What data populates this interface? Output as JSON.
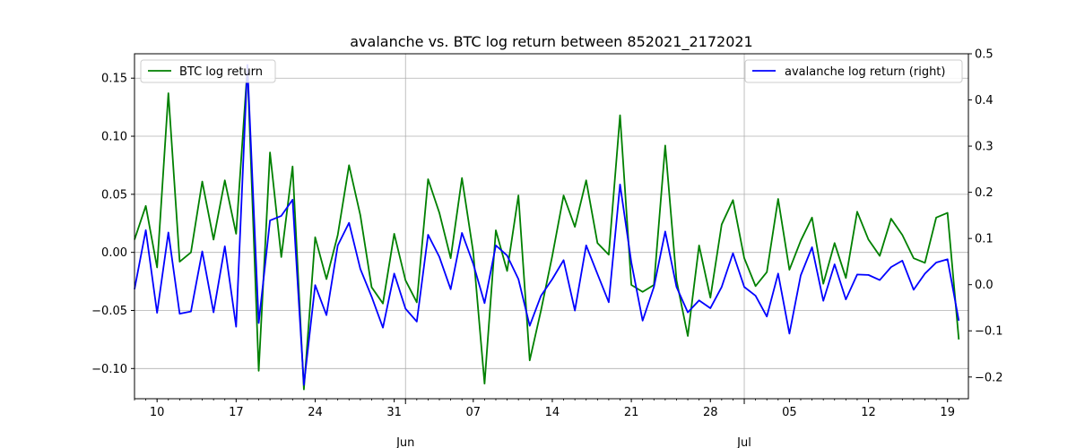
{
  "chart_data": {
    "type": "line",
    "title": "avalanche vs. BTC log return between 852021_2172021",
    "x": [
      "05-08",
      "05-09",
      "05-10",
      "05-11",
      "05-12",
      "05-13",
      "05-14",
      "05-15",
      "05-16",
      "05-17",
      "05-18",
      "05-19",
      "05-20",
      "05-21",
      "05-22",
      "05-23",
      "05-24",
      "05-25",
      "05-26",
      "05-27",
      "05-28",
      "05-29",
      "05-30",
      "05-31",
      "06-01",
      "06-02",
      "06-03",
      "06-04",
      "06-05",
      "06-06",
      "06-07",
      "06-08",
      "06-09",
      "06-10",
      "06-11",
      "06-12",
      "06-13",
      "06-14",
      "06-15",
      "06-16",
      "06-17",
      "06-18",
      "06-19",
      "06-20",
      "06-21",
      "06-22",
      "06-23",
      "06-24",
      "06-25",
      "06-26",
      "06-27",
      "06-28",
      "06-29",
      "06-30",
      "07-01",
      "07-02",
      "07-03",
      "07-04",
      "07-05",
      "07-06",
      "07-07",
      "07-08",
      "07-09",
      "07-10",
      "07-11",
      "07-12",
      "07-13",
      "07-14",
      "07-15",
      "07-16",
      "07-17",
      "07-18",
      "07-19",
      "07-20"
    ],
    "xlim": [
      "05-08",
      "05-21"
    ],
    "x_tick_labels": [
      {
        "date": "05-10",
        "label": "10"
      },
      {
        "date": "05-17",
        "label": "17"
      },
      {
        "date": "05-24",
        "label": "24"
      },
      {
        "date": "05-31",
        "label": "31"
      },
      {
        "date": "06-07",
        "label": "07"
      },
      {
        "date": "06-14",
        "label": "14"
      },
      {
        "date": "06-21",
        "label": "21"
      },
      {
        "date": "06-28",
        "label": "28"
      },
      {
        "date": "07-05",
        "label": "05"
      },
      {
        "date": "07-12",
        "label": "12"
      },
      {
        "date": "07-19",
        "label": "19"
      }
    ],
    "x_major_labels": [
      {
        "date": "06-01",
        "label": "Jun"
      },
      {
        "date": "07-01",
        "label": "Jul"
      }
    ],
    "left_axis": {
      "ylim": [
        -0.126,
        0.171
      ],
      "ticks": [
        "0.15",
        "0.10",
        "0.05",
        "0.00",
        "−0.05",
        "−0.10"
      ],
      "tick_values": [
        0.15,
        0.1,
        0.05,
        0.0,
        -0.05,
        -0.1
      ]
    },
    "right_axis": {
      "ylim": [
        -0.247,
        0.5
      ],
      "ticks": [
        "0.5",
        "0.4",
        "0.3",
        "0.2",
        "0.1",
        "0.0",
        "−0.1",
        "−0.2"
      ],
      "tick_values": [
        0.5,
        0.4,
        0.3,
        0.2,
        0.1,
        0.0,
        -0.1,
        -0.2
      ]
    },
    "grid": true,
    "series": [
      {
        "name": "BTC log return",
        "axis": "left",
        "color": "#008000",
        "legend_position": "upper-left",
        "values": [
          0.011,
          0.04,
          -0.013,
          0.137,
          -0.008,
          0.0,
          0.061,
          0.011,
          0.062,
          0.016,
          0.159,
          -0.102,
          0.086,
          -0.004,
          0.074,
          -0.118,
          0.013,
          -0.023,
          0.015,
          0.075,
          0.032,
          -0.03,
          -0.044,
          0.016,
          -0.024,
          -0.043,
          0.063,
          0.034,
          -0.005,
          0.064,
          0.0,
          -0.113,
          0.019,
          -0.016,
          0.049,
          -0.093,
          -0.05,
          -0.003,
          0.049,
          0.022,
          0.062,
          0.008,
          -0.002,
          0.118,
          -0.028,
          -0.034,
          -0.028,
          0.092,
          -0.024,
          -0.072,
          0.006,
          -0.039,
          0.024,
          0.045,
          -0.005,
          -0.029,
          -0.017,
          0.046,
          -0.015,
          0.01,
          0.03,
          -0.027,
          0.008,
          -0.022,
          0.035,
          0.011,
          -0.003,
          0.029,
          0.015,
          -0.005,
          -0.009,
          0.03,
          0.034,
          -0.075
        ]
      },
      {
        "name": "avalanche log return (right)",
        "axis": "right",
        "color": "#0000ff",
        "legend_position": "upper-right",
        "values": [
          -0.01,
          0.118,
          -0.061,
          0.113,
          -0.063,
          -0.058,
          0.072,
          -0.06,
          0.083,
          -0.091,
          0.476,
          -0.083,
          0.139,
          0.149,
          0.184,
          -0.217,
          -0.001,
          -0.066,
          0.085,
          0.134,
          0.034,
          -0.026,
          -0.093,
          0.024,
          -0.052,
          -0.08,
          0.108,
          0.06,
          -0.01,
          0.112,
          0.045,
          -0.04,
          0.085,
          0.063,
          0.012,
          -0.089,
          -0.024,
          0.012,
          0.053,
          -0.056,
          0.085,
          0.023,
          -0.038,
          0.217,
          0.048,
          -0.078,
          -0.005,
          0.115,
          -0.005,
          -0.06,
          -0.034,
          -0.051,
          -0.005,
          0.068,
          -0.005,
          -0.024,
          -0.069,
          0.024,
          -0.106,
          0.02,
          0.081,
          -0.035,
          0.044,
          -0.032,
          0.022,
          0.021,
          0.01,
          0.038,
          0.052,
          -0.011,
          0.024,
          0.048,
          0.055,
          -0.078
        ]
      }
    ]
  }
}
